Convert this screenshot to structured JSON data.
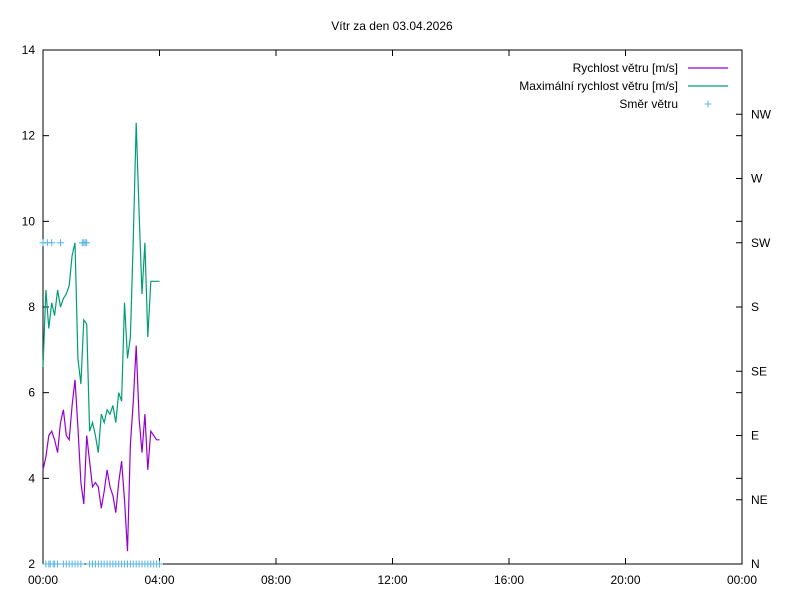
{
  "chart_data": {
    "type": "line",
    "title": "Vítr za den 03.04.2026",
    "xlabel": "",
    "ylabel": "",
    "x_range_hours": [
      0,
      24
    ],
    "x_ticks": [
      "00:00",
      "04:00",
      "08:00",
      "12:00",
      "16:00",
      "20:00",
      "00:00"
    ],
    "ylim": [
      2,
      14
    ],
    "y_ticks": [
      2,
      4,
      6,
      8,
      10,
      12,
      14
    ],
    "y2_ticks": [
      "N",
      "NE",
      "E",
      "SE",
      "S",
      "SW",
      "W",
      "NW"
    ],
    "grid": false,
    "legend_position": "top-right",
    "series": [
      {
        "name": "Rychlost větru [m/s]",
        "color": "#9400d3",
        "x": [
          0.0,
          0.1,
          0.2,
          0.3,
          0.4,
          0.5,
          0.6,
          0.7,
          0.8,
          0.9,
          1.0,
          1.1,
          1.2,
          1.3,
          1.4,
          1.5,
          1.6,
          1.7,
          1.8,
          1.9,
          2.0,
          2.1,
          2.2,
          2.3,
          2.4,
          2.5,
          2.6,
          2.7,
          2.8,
          2.9,
          3.0,
          3.1,
          3.2,
          3.3,
          3.4,
          3.5,
          3.6,
          3.7,
          3.8,
          3.9,
          4.0
        ],
        "values": [
          4.2,
          4.5,
          5.0,
          5.1,
          4.9,
          4.6,
          5.3,
          5.6,
          5.0,
          4.9,
          5.7,
          6.3,
          5.2,
          3.9,
          3.4,
          5.0,
          4.4,
          3.8,
          3.9,
          3.8,
          3.3,
          3.7,
          4.2,
          3.8,
          3.6,
          3.2,
          3.9,
          4.4,
          3.5,
          2.3,
          4.8,
          5.8,
          7.1,
          5.4,
          4.6,
          5.5,
          4.2,
          5.1,
          5.0,
          4.9,
          4.9
        ]
      },
      {
        "name": "Maximální rychlost větru [m/s]",
        "color": "#009e73",
        "x": [
          0.0,
          0.1,
          0.2,
          0.3,
          0.4,
          0.5,
          0.6,
          0.7,
          0.8,
          0.9,
          1.0,
          1.1,
          1.2,
          1.3,
          1.4,
          1.5,
          1.6,
          1.7,
          1.8,
          1.9,
          2.0,
          2.1,
          2.2,
          2.3,
          2.4,
          2.5,
          2.6,
          2.7,
          2.8,
          2.9,
          3.0,
          3.1,
          3.2,
          3.3,
          3.4,
          3.5,
          3.6,
          3.7,
          3.8,
          3.9,
          4.0
        ],
        "values": [
          6.6,
          8.4,
          7.5,
          8.1,
          7.8,
          8.4,
          8.0,
          8.2,
          8.3,
          8.5,
          9.2,
          9.5,
          6.8,
          6.2,
          7.7,
          7.6,
          5.1,
          5.3,
          5.0,
          4.6,
          5.5,
          5.3,
          5.6,
          5.5,
          5.7,
          5.3,
          6.0,
          5.8,
          8.1,
          6.8,
          7.3,
          9.6,
          12.3,
          10.2,
          8.3,
          9.5,
          7.3,
          8.6,
          8.6,
          8.6,
          8.6
        ]
      },
      {
        "name": "Směr větru",
        "color": "#56b4e9",
        "y_axis": "right",
        "x": [
          0.0,
          0.1,
          0.15,
          0.2,
          0.25,
          0.3,
          0.35,
          0.4,
          0.5,
          0.6,
          0.7,
          0.8,
          0.9,
          1.0,
          1.1,
          1.2,
          1.3,
          1.35,
          1.4,
          1.45,
          1.5,
          1.6,
          1.7,
          1.8,
          1.9,
          2.0,
          2.1,
          2.2,
          2.3,
          2.4,
          2.5,
          2.6,
          2.7,
          2.8,
          2.9,
          3.0,
          3.1,
          3.2,
          3.3,
          3.4,
          3.5,
          3.6,
          3.7,
          3.8,
          3.9,
          4.0
        ],
        "values": [
          "SW",
          "N",
          "SW",
          "N",
          "N",
          "SW",
          "N",
          "N",
          "N",
          "SW",
          "N",
          "N",
          "N",
          "N",
          "N",
          "N",
          "N",
          "SW",
          "SW",
          "SW",
          "SW",
          "N",
          "N",
          "N",
          "N",
          "N",
          "N",
          "N",
          "N",
          "N",
          "N",
          "N",
          "N",
          "N",
          "N",
          "N",
          "N",
          "N",
          "N",
          "N",
          "N",
          "N",
          "N",
          "N",
          "N",
          "N"
        ]
      }
    ]
  }
}
